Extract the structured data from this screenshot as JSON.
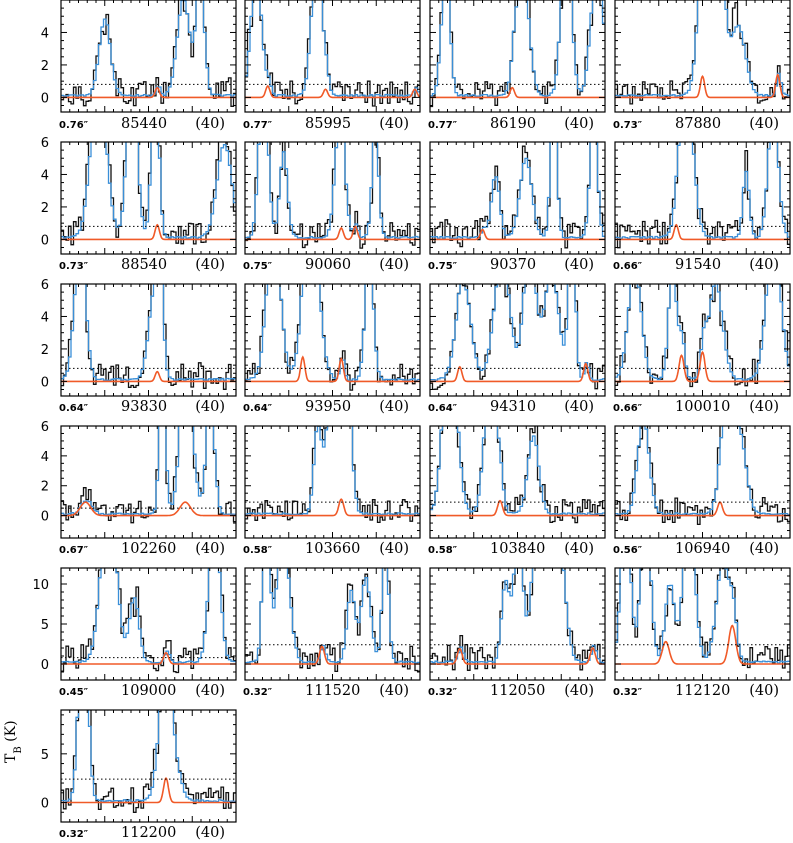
{
  "figure": {
    "y_axis_label": "T",
    "y_axis_label_sub": "B",
    "y_axis_label_unit": " (K)",
    "colors": {
      "observed": "#111111",
      "full_model": "#3a8fd8",
      "species_model": "#f05a28",
      "threshold": "#000000"
    }
  },
  "chart_data": [
    {
      "type": "line",
      "resolution": "0.76″",
      "frequency": "85440",
      "width": "(40)",
      "ylim": [
        -0.9,
        6
      ],
      "yticks": [
        "0",
        "2",
        "4"
      ],
      "threshold": 0.8,
      "lines": [
        {
          "c": 0.55,
          "a": 0.6,
          "w": 0.012
        }
      ]
    },
    {
      "type": "line",
      "resolution": "0.77″",
      "frequency": "85995",
      "width": "(40)",
      "ylim": [
        -0.9,
        6
      ],
      "yticks": [],
      "threshold": 0.8,
      "lines": [
        {
          "c": 0.13,
          "a": 0.7,
          "w": 0.012
        },
        {
          "c": 0.46,
          "a": 0.5,
          "w": 0.012
        },
        {
          "c": 0.97,
          "a": 0.5,
          "w": 0.012
        }
      ]
    },
    {
      "type": "line",
      "resolution": "0.77″",
      "frequency": "86190",
      "width": "(40)",
      "ylim": [
        -0.9,
        6
      ],
      "yticks": [],
      "threshold": 0.8,
      "lines": [
        {
          "c": 0.47,
          "a": 0.6,
          "w": 0.012
        }
      ]
    },
    {
      "type": "line",
      "resolution": "0.73″",
      "frequency": "87880",
      "width": "(40)",
      "ylim": [
        -0.9,
        6
      ],
      "yticks": [],
      "threshold": 0.8,
      "lines": [
        {
          "c": 0.5,
          "a": 1.3,
          "w": 0.012
        },
        {
          "c": 0.93,
          "a": 1.4,
          "w": 0.012
        }
      ]
    },
    {
      "type": "line",
      "resolution": "0.73″",
      "frequency": "88540",
      "width": "(40)",
      "ylim": [
        -0.9,
        6
      ],
      "yticks": [
        "0",
        "2",
        "4",
        "6"
      ],
      "threshold": 0.8,
      "lines": [
        {
          "c": 0.55,
          "a": 0.9,
          "w": 0.012
        }
      ]
    },
    {
      "type": "line",
      "resolution": "0.75″",
      "frequency": "90060",
      "width": "(40)",
      "ylim": [
        -0.9,
        6
      ],
      "yticks": [],
      "threshold": 0.8,
      "lines": [
        {
          "c": 0.55,
          "a": 0.7,
          "w": 0.012
        },
        {
          "c": 0.63,
          "a": 0.8,
          "w": 0.012
        }
      ]
    },
    {
      "type": "line",
      "resolution": "0.75″",
      "frequency": "90370",
      "width": "(40)",
      "ylim": [
        -0.9,
        6
      ],
      "yticks": [],
      "threshold": 0.8,
      "lines": [
        {
          "c": 0.3,
          "a": 0.6,
          "w": 0.012
        }
      ]
    },
    {
      "type": "line",
      "resolution": "0.66″",
      "frequency": "91540",
      "width": "(40)",
      "ylim": [
        -0.9,
        6
      ],
      "yticks": [],
      "threshold": 0.8,
      "lines": [
        {
          "c": 0.35,
          "a": 0.9,
          "w": 0.012
        }
      ]
    },
    {
      "type": "line",
      "resolution": "0.64″",
      "frequency": "93830",
      "width": "(40)",
      "ylim": [
        -0.9,
        6
      ],
      "yticks": [
        "0",
        "2",
        "4",
        "6"
      ],
      "threshold": 0.8,
      "lines": [
        {
          "c": 0.55,
          "a": 0.6,
          "w": 0.012
        }
      ]
    },
    {
      "type": "line",
      "resolution": "0.64″",
      "frequency": "93950",
      "width": "(40)",
      "ylim": [
        -0.9,
        6
      ],
      "yticks": [],
      "threshold": 0.8,
      "lines": [
        {
          "c": 0.33,
          "a": 1.5,
          "w": 0.012
        },
        {
          "c": 0.55,
          "a": 1.4,
          "w": 0.012
        }
      ]
    },
    {
      "type": "line",
      "resolution": "0.64″",
      "frequency": "94310",
      "width": "(40)",
      "ylim": [
        -0.9,
        6
      ],
      "yticks": [],
      "threshold": 0.8,
      "lines": [
        {
          "c": 0.17,
          "a": 0.9,
          "w": 0.012
        },
        {
          "c": 0.89,
          "a": 1.1,
          "w": 0.012
        }
      ]
    },
    {
      "type": "line",
      "resolution": "0.66″",
      "frequency": "100010",
      "width": "(40)",
      "ylim": [
        -0.9,
        6
      ],
      "yticks": [],
      "threshold": 0.8,
      "lines": [
        {
          "c": 0.38,
          "a": 1.6,
          "w": 0.014
        },
        {
          "c": 0.5,
          "a": 1.8,
          "w": 0.014
        }
      ]
    },
    {
      "type": "line",
      "resolution": "0.67″",
      "frequency": "102260",
      "width": "(40)",
      "ylim": [
        -1.5,
        6
      ],
      "yticks": [
        "0",
        "2",
        "4",
        "6"
      ],
      "threshold": 0.5,
      "lines": [
        {
          "c": 0.14,
          "a": 0.9,
          "w": 0.03
        },
        {
          "c": 0.71,
          "a": 0.9,
          "w": 0.03
        }
      ]
    },
    {
      "type": "line",
      "resolution": "0.58″",
      "frequency": "103660",
      "width": "(40)",
      "ylim": [
        -1.5,
        6
      ],
      "yticks": [],
      "threshold": 0.9,
      "lines": [
        {
          "c": 0.55,
          "a": 1.1,
          "w": 0.014
        }
      ]
    },
    {
      "type": "line",
      "resolution": "0.58″",
      "frequency": "103840",
      "width": "(40)",
      "ylim": [
        -1.5,
        6
      ],
      "yticks": [],
      "threshold": 0.9,
      "lines": [
        {
          "c": 0.4,
          "a": 1.0,
          "w": 0.014
        }
      ]
    },
    {
      "type": "line",
      "resolution": "0.56″",
      "frequency": "106940",
      "width": "(40)",
      "ylim": [
        -1.5,
        6
      ],
      "yticks": [],
      "threshold": 0.9,
      "lines": [
        {
          "c": 0.6,
          "a": 0.9,
          "w": 0.014
        }
      ]
    },
    {
      "type": "line",
      "resolution": "0.45″",
      "frequency": "109000",
      "width": "(40)",
      "ylim": [
        -2,
        12
      ],
      "yticks": [
        "0",
        "5",
        "10"
      ],
      "threshold": 0.8,
      "lines": [
        {
          "c": 0.6,
          "a": 1.4,
          "w": 0.014
        }
      ]
    },
    {
      "type": "line",
      "resolution": "0.32″",
      "frequency": "111520",
      "width": "(40)",
      "ylim": [
        -2,
        12
      ],
      "yticks": [],
      "threshold": 2.4,
      "lines": [
        {
          "c": 0.44,
          "a": 2.2,
          "w": 0.014
        }
      ]
    },
    {
      "type": "line",
      "resolution": "0.32″",
      "frequency": "112050",
      "width": "(40)",
      "ylim": [
        -2,
        12
      ],
      "yticks": [],
      "threshold": 2.4,
      "lines": [
        {
          "c": 0.17,
          "a": 1.9,
          "w": 0.014
        },
        {
          "c": 0.93,
          "a": 2.0,
          "w": 0.014
        }
      ]
    },
    {
      "type": "line",
      "resolution": "0.32″",
      "frequency": "112120",
      "width": "(40)",
      "ylim": [
        -2,
        12
      ],
      "yticks": [],
      "threshold": 2.4,
      "lines": [
        {
          "c": 0.29,
          "a": 2.8,
          "w": 0.02
        },
        {
          "c": 0.67,
          "a": 4.8,
          "w": 0.02
        }
      ]
    },
    {
      "type": "line",
      "resolution": "0.32″",
      "frequency": "112200",
      "width": "(40)",
      "ylim": [
        -2,
        9.5
      ],
      "yticks": [
        "0",
        "5"
      ],
      "threshold": 2.4,
      "lines": [
        {
          "c": 0.6,
          "a": 2.5,
          "w": 0.014
        }
      ]
    }
  ]
}
